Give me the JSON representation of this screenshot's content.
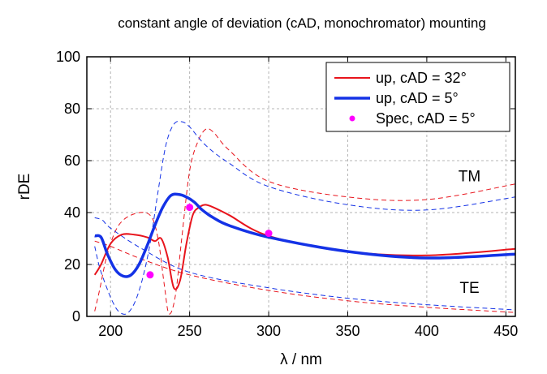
{
  "chart_data": {
    "type": "line",
    "title": "constant angle of deviation (cAD, monochromator) mounting",
    "xlabel": "λ / nm",
    "ylabel": "rDE",
    "xlim": [
      185,
      456
    ],
    "ylim": [
      0,
      100
    ],
    "xticks": [
      200,
      250,
      300,
      350,
      400,
      450
    ],
    "yticks": [
      0,
      20,
      40,
      60,
      80,
      100
    ],
    "grid": true,
    "legend_position": "top-right",
    "annotations": [
      {
        "text": "TM",
        "x": 427,
        "y": 52
      },
      {
        "text": "TE",
        "x": 427,
        "y": 9
      }
    ],
    "series": [
      {
        "name": "up, cAD = 32°",
        "color": "#e8141c",
        "style": "solid",
        "width": 2,
        "x": [
          190,
          194,
          200,
          207,
          215,
          223,
          228,
          232,
          236,
          240,
          244,
          248,
          252,
          256,
          260,
          265,
          275,
          300,
          350,
          400,
          456
        ],
        "y": [
          16,
          20,
          28,
          31.5,
          31.5,
          30.5,
          29,
          30,
          23,
          11,
          14,
          28,
          39,
          42,
          43,
          42,
          39,
          31,
          25,
          23.5,
          26
        ]
      },
      {
        "name": "up, cAD = 5°",
        "color": "#1432e6",
        "style": "solid",
        "width": 3.5,
        "x": [
          190,
          194,
          198,
          203,
          208,
          213,
          218,
          223,
          228,
          233,
          238,
          243,
          248,
          253,
          258,
          265,
          275,
          300,
          350,
          400,
          456
        ],
        "y": [
          31,
          30.5,
          24,
          18,
          15.5,
          16,
          20,
          27,
          35,
          42,
          46.5,
          47,
          46,
          44,
          41,
          38,
          35,
          30.5,
          25,
          22.5,
          24
        ]
      },
      {
        "name": "Spec, cAD = 5°",
        "color": "#ff00ff",
        "type": "scatter",
        "x": [
          225,
          250,
          300
        ],
        "y": [
          16,
          42,
          32
        ]
      },
      {
        "color": "#e8141c",
        "style": "dashed",
        "width": 1,
        "x": [
          190,
          193,
          198,
          205,
          215,
          225,
          230,
          234,
          237,
          241,
          245,
          250,
          255,
          260,
          265,
          275,
          300,
          350,
          400,
          456
        ],
        "y": [
          2,
          10,
          24,
          35,
          39.5,
          39,
          30,
          12,
          1,
          8,
          30,
          56,
          67,
          72,
          71,
          64,
          52,
          46,
          45,
          51
        ]
      },
      {
        "color": "#1432e6",
        "style": "dashed",
        "width": 1,
        "x": [
          190,
          193,
          197,
          201,
          205,
          210,
          215,
          220,
          225,
          230,
          235,
          240,
          245,
          250,
          260,
          275,
          300,
          350,
          400,
          456
        ],
        "y": [
          27,
          19,
          12,
          6,
          2,
          1,
          5,
          14,
          28,
          48,
          66,
          74,
          75,
          73,
          66,
          59,
          50,
          43,
          41,
          46
        ]
      },
      {
        "color": "#1432e6",
        "style": "dashed",
        "width": 1,
        "x": [
          190,
          195,
          200,
          220,
          250,
          300,
          350,
          400,
          456
        ],
        "y": [
          38,
          37,
          34,
          26,
          17,
          11,
          7,
          4.5,
          2.5
        ]
      },
      {
        "color": "#e8141c",
        "style": "dashed",
        "width": 1,
        "x": [
          190,
          200,
          220,
          250,
          300,
          350,
          400,
          456
        ],
        "y": [
          29,
          27,
          22,
          16,
          10,
          6,
          3.5,
          1.5
        ]
      }
    ]
  }
}
